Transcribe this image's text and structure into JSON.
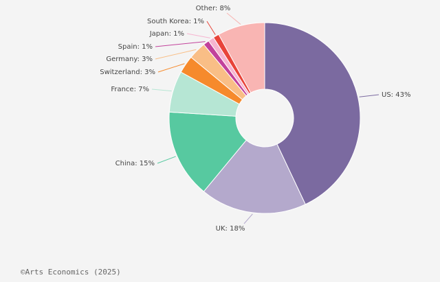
{
  "chart_data": {
    "type": "donut",
    "values": [
      43,
      18,
      15,
      7,
      3,
      3,
      1,
      1,
      1,
      8
    ],
    "value_labels": [
      "US: 43%",
      "UK: 18%",
      "China: 15%",
      "France: 7%",
      "Switzerland: 3%",
      "Germany: 3%",
      "Spain: 1%",
      "Japan: 1%",
      "South Korea: 1%",
      "Other: 8%"
    ],
    "colors": [
      "#7b6aa0",
      "#b4a9cc",
      "#57c9a0",
      "#b6e6d4",
      "#f68a2c",
      "#f9be86",
      "#c2419b",
      "#f6b4d0",
      "#e8443a",
      "#f9b5b3"
    ],
    "source": "©Arts Economics (2025)"
  }
}
